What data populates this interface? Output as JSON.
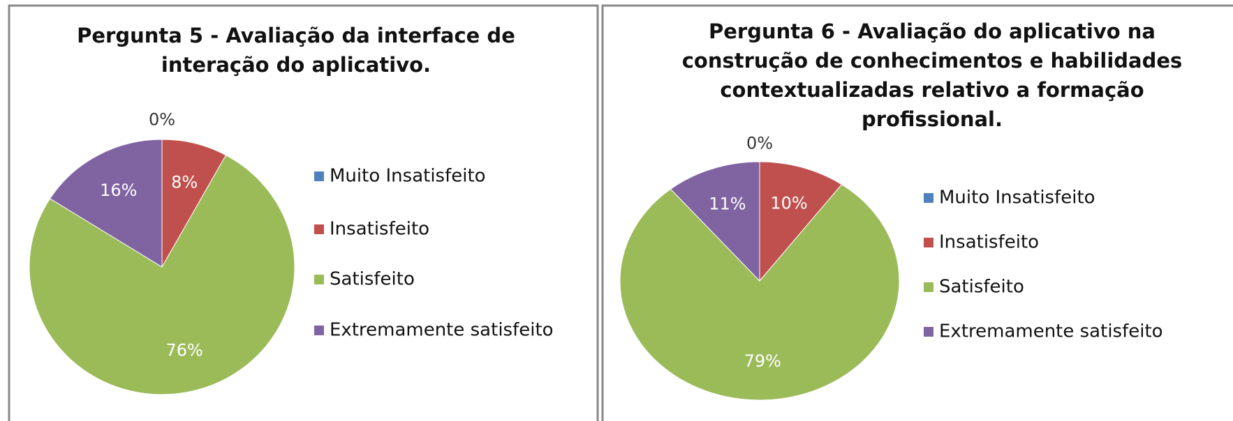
{
  "chart_data": [
    {
      "type": "pie",
      "title": "Pergunta 5 - Avaliação da interface de interação do aplicativo.",
      "categories": [
        "Muito Insatisfeito",
        "Insatisfeito",
        "Satisfeito",
        "Extremamente satisfeito"
      ],
      "values": [
        0,
        8,
        76,
        16
      ],
      "value_labels": [
        "0%",
        "8%",
        "76%",
        "16%"
      ],
      "colors": [
        "#4f81bd",
        "#c0504d",
        "#9bbb59",
        "#8064a2"
      ],
      "legend": "right"
    },
    {
      "type": "pie",
      "title": "Pergunta 6 - Avaliação do aplicativo na construção de conhecimentos e habilidades contextualizadas relativo a formação profissional.",
      "categories": [
        "Muito Insatisfeito",
        "Insatisfeito",
        "Satisfeito",
        "Extremamente satisfeito"
      ],
      "values": [
        0,
        10,
        79,
        11
      ],
      "value_labels": [
        "0%",
        "10%",
        "79%",
        "11%"
      ],
      "colors": [
        "#4f81bd",
        "#c0504d",
        "#9bbb59",
        "#8064a2"
      ],
      "legend": "right"
    }
  ]
}
